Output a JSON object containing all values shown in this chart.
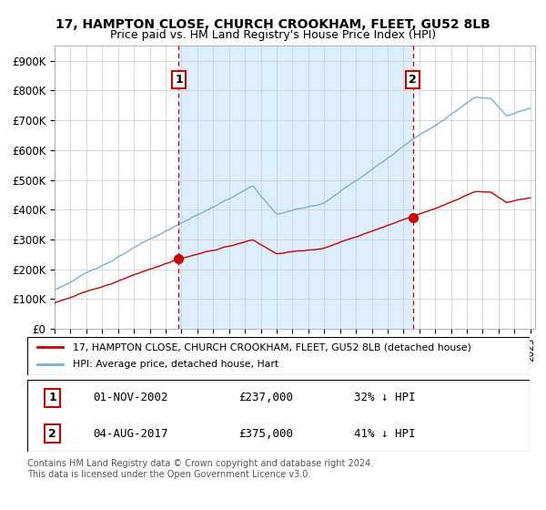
{
  "title": "17, HAMPTON CLOSE, CHURCH CROOKHAM, FLEET, GU52 8LB",
  "subtitle": "Price paid vs. HM Land Registry's House Price Index (HPI)",
  "ylim": [
    0,
    950000
  ],
  "yticks": [
    0,
    100000,
    200000,
    300000,
    400000,
    500000,
    600000,
    700000,
    800000,
    900000
  ],
  "ytick_labels": [
    "£0",
    "£100K",
    "£200K",
    "£300K",
    "£400K",
    "£500K",
    "£600K",
    "£700K",
    "£800K",
    "£900K"
  ],
  "xlim_start": 1995.0,
  "xlim_end": 2025.3,
  "sale1_x": 2002.833,
  "sale1_y": 237000,
  "sale1_label": "1",
  "sale1_date": "01-NOV-2002",
  "sale1_price": "£237,000",
  "sale1_hpi": "32% ↓ HPI",
  "sale2_x": 2017.583,
  "sale2_y": 375000,
  "sale2_label": "2",
  "sale2_date": "04-AUG-2017",
  "sale2_price": "£375,000",
  "sale2_hpi": "41% ↓ HPI",
  "house_color": "#cc0000",
  "hpi_color": "#7ab0d4",
  "shade_color": "#ddeeff",
  "background_color": "#ffffff",
  "grid_color": "#cccccc",
  "legend_house": "17, HAMPTON CLOSE, CHURCH CROOKHAM, FLEET, GU52 8LB (detached house)",
  "legend_hpi": "HPI: Average price, detached house, Hart",
  "footer": "Contains HM Land Registry data © Crown copyright and database right 2024.\nThis data is licensed under the Open Government Licence v3.0."
}
